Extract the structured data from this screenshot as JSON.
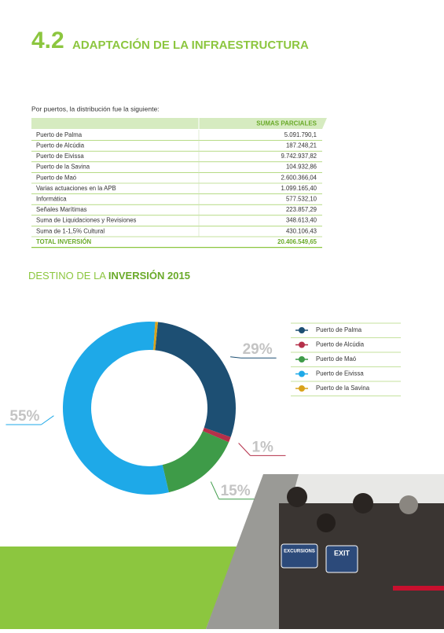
{
  "header": {
    "number": "4.2",
    "title": "ADAPTACIÓN DE LA INFRAESTRUCTURA"
  },
  "intro": "Por puertos, la distribución fue la  siguiente:",
  "table": {
    "header": "SUMAS PARCIALES",
    "rows": [
      [
        "Puerto de Palma",
        "5.091.790,1"
      ],
      [
        "Puerto de Alcúdia",
        "187.248,21"
      ],
      [
        "Puerto de Eivissa",
        "9.742.937,82"
      ],
      [
        "Puerto de la Savina",
        "104.932,86"
      ],
      [
        "Puerto de Maó",
        "2.600.366,04"
      ],
      [
        "Varias actuaciones en la APB",
        "1.099.165,40"
      ],
      [
        "Informática",
        "577.532,10"
      ],
      [
        "Señales Marítimas",
        "223.857,29"
      ],
      [
        "Suma de Liquidaciones y Revisiones",
        "348.613,40"
      ],
      [
        "Suma de 1-1,5% Cultural",
        "430.106,43"
      ]
    ],
    "total": [
      "TOTAL INVERSIÓN",
      "20.406.549,65"
    ]
  },
  "section": {
    "light": "DESTINO DE LA ",
    "bold": "INVERSIÓN 2015"
  },
  "photo": {
    "signs": [
      "EXCURSIONS",
      "EXIT"
    ]
  },
  "chart_data": {
    "type": "pie",
    "donut": true,
    "categories": [
      "Puerto de Palma",
      "Puerto de Alcúdia",
      "Puerto de Maó",
      "Puerto de Eivissa",
      "Puerto de la Savina"
    ],
    "colors": [
      "#1d4f73",
      "#b5304a",
      "#3e9b48",
      "#1ea9e8",
      "#d9a21b"
    ],
    "values": [
      29,
      1,
      15,
      55,
      0.5
    ],
    "value_labels": [
      "29%",
      "1%",
      "15%",
      "55%",
      null
    ]
  }
}
